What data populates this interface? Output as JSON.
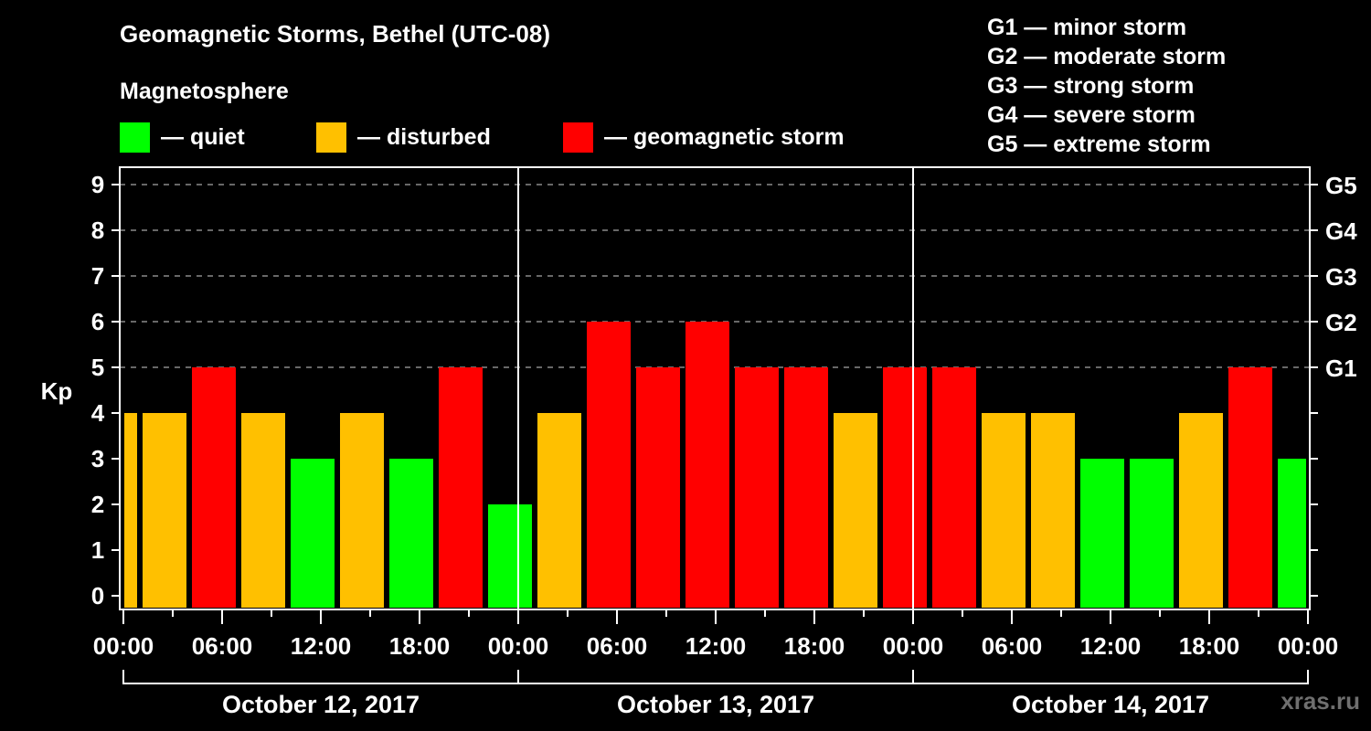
{
  "header": {
    "title": "Geomagnetic Storms, Bethel (UTC-08)",
    "subtitle": "Magnetosphere"
  },
  "legend": {
    "items": [
      {
        "label": "— quiet",
        "color": "#00ff00"
      },
      {
        "label": "— disturbed",
        "color": "#ffc000"
      },
      {
        "label": "— geomagnetic storm",
        "color": "#ff0000"
      }
    ]
  },
  "storm_scale": [
    "G1 — minor storm",
    "G2 — moderate storm",
    "G3 — strong storm",
    "G4 — severe storm",
    "G5 — extreme storm"
  ],
  "watermark": "xras.ru",
  "chart_data": {
    "type": "bar",
    "title": "Geomagnetic Storms, Bethel (UTC-08)",
    "subtitle": "Magnetosphere",
    "xlabel": "",
    "ylabel": "Kp",
    "ylim": [
      0,
      9
    ],
    "yticks": [
      0,
      1,
      2,
      3,
      4,
      5,
      6,
      7,
      8,
      9
    ],
    "right_axis_labels": [
      {
        "kp": 5,
        "label": "G1"
      },
      {
        "kp": 6,
        "label": "G2"
      },
      {
        "kp": 7,
        "label": "G3"
      },
      {
        "kp": 8,
        "label": "G4"
      },
      {
        "kp": 9,
        "label": "G5"
      }
    ],
    "grid": "horizontal dashed at Kp 5-9",
    "xtick_labels": [
      "00:00",
      "06:00",
      "12:00",
      "18:00",
      "00:00",
      "06:00",
      "12:00",
      "18:00",
      "00:00",
      "06:00",
      "12:00",
      "18:00",
      "00:00"
    ],
    "days": [
      "October 12, 2017",
      "October 13, 2017",
      "October 14, 2017"
    ],
    "interval_hours": 3,
    "color_rule": {
      "quiet": "Kp < 4",
      "disturbed": "Kp = 4",
      "storm": "Kp >= 5"
    },
    "colors": {
      "quiet": "#00ff00",
      "disturbed": "#ffc000",
      "storm": "#ff0000"
    },
    "first_bar_partial": true,
    "values": [
      4,
      4,
      5,
      4,
      3,
      4,
      3,
      5,
      2,
      4,
      6,
      5,
      6,
      5,
      5,
      4,
      5,
      5,
      4,
      4,
      3,
      3,
      4,
      5,
      3
    ],
    "legend_position": "top"
  }
}
